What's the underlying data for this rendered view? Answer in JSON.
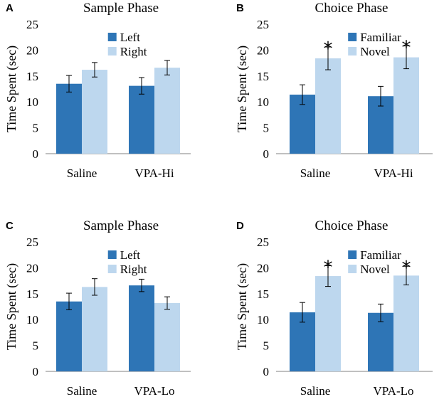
{
  "colors": {
    "series1": "#2e75b6",
    "series2": "#bdd7ee",
    "axis": "#808080",
    "errbar": "#000000"
  },
  "chart_data": [
    {
      "panel": "A",
      "type": "bar",
      "title": "Sample Phase",
      "ylabel": "Time Spent (sec)",
      "ylim": [
        0,
        25
      ],
      "yticks": [
        0,
        5,
        10,
        15,
        20,
        25
      ],
      "categories": [
        "Saline",
        "VPA-Hi"
      ],
      "series": [
        {
          "name": "Left",
          "values": [
            13.5,
            13.1
          ],
          "errors": [
            1.6,
            1.6
          ]
        },
        {
          "name": "Right",
          "values": [
            16.2,
            16.6
          ],
          "errors": [
            1.4,
            1.4
          ]
        }
      ],
      "significance": [],
      "legend": "top-center"
    },
    {
      "panel": "B",
      "type": "bar",
      "title": "Choice Phase",
      "ylabel": "Time Spent (sec)",
      "ylim": [
        0,
        25
      ],
      "yticks": [
        0,
        5,
        10,
        15,
        20,
        25
      ],
      "categories": [
        "Saline",
        "VPA-Hi"
      ],
      "series": [
        {
          "name": "Familiar",
          "values": [
            11.4,
            11.1
          ],
          "errors": [
            1.9,
            1.9
          ]
        },
        {
          "name": "Novel",
          "values": [
            18.4,
            18.6
          ],
          "errors": [
            2.2,
            2.2
          ]
        }
      ],
      "significance": [
        {
          "category": 0,
          "series": 1,
          "mark": "*"
        },
        {
          "category": 1,
          "series": 1,
          "mark": "*"
        }
      ],
      "legend": "top-center"
    },
    {
      "panel": "C",
      "type": "bar",
      "title": "Sample Phase",
      "ylabel": "Time Spent (sec)",
      "ylim": [
        0,
        25
      ],
      "yticks": [
        0,
        5,
        10,
        15,
        20,
        25
      ],
      "categories": [
        "Saline",
        "VPA-Lo"
      ],
      "series": [
        {
          "name": "Left",
          "values": [
            13.5,
            16.6
          ],
          "errors": [
            1.6,
            1.2
          ]
        },
        {
          "name": "Right",
          "values": [
            16.3,
            13.2
          ],
          "errors": [
            1.6,
            1.2
          ]
        }
      ],
      "significance": [],
      "legend": "top-center"
    },
    {
      "panel": "D",
      "type": "bar",
      "title": "Choice Phase",
      "ylabel": "Time Spent (sec)",
      "ylim": [
        0,
        25
      ],
      "yticks": [
        0,
        5,
        10,
        15,
        20,
        25
      ],
      "categories": [
        "Saline",
        "VPA-Lo"
      ],
      "series": [
        {
          "name": "Familiar",
          "values": [
            11.4,
            11.3
          ],
          "errors": [
            1.9,
            1.7
          ]
        },
        {
          "name": "Novel",
          "values": [
            18.4,
            18.5
          ],
          "errors": [
            2.0,
            1.8
          ]
        }
      ],
      "significance": [
        {
          "category": 0,
          "series": 1,
          "mark": "*"
        },
        {
          "category": 1,
          "series": 1,
          "mark": "*"
        }
      ],
      "legend": "top-center"
    }
  ]
}
